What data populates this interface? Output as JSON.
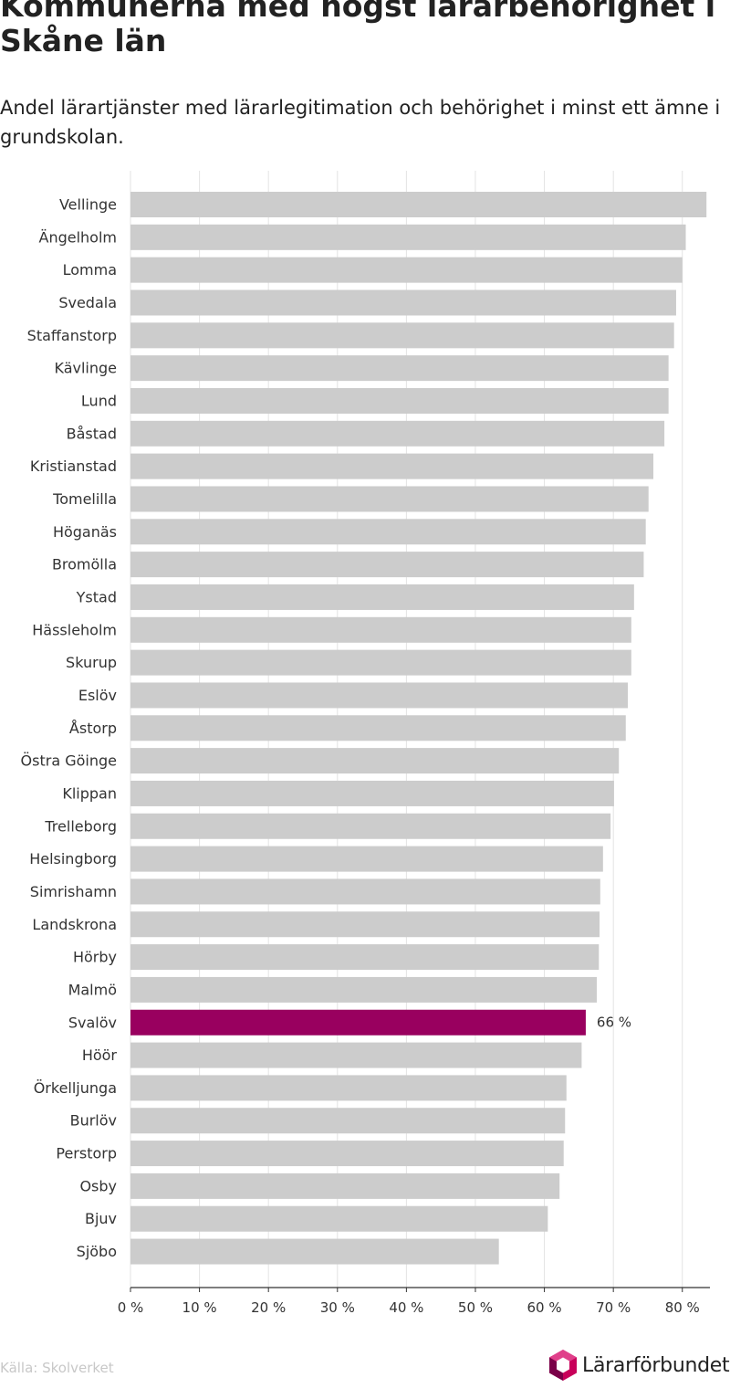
{
  "chart_data": {
    "type": "bar",
    "orientation": "horizontal",
    "title": "Kommunerna med högst lärarbehörighet i Skåne län",
    "subtitle": "Andel lärartjänster med lärarlegitimation och behörighet i minst ett ämne i grundskolan.",
    "categories": [
      "Vellinge",
      "Ängelholm",
      "Lomma",
      "Svedala",
      "Staffanstorp",
      "Kävlinge",
      "Lund",
      "Båstad",
      "Kristianstad",
      "Tomelilla",
      "Höganäs",
      "Bromölla",
      "Ystad",
      "Hässleholm",
      "Skurup",
      "Eslöv",
      "Åstorp",
      "Östra Göinge",
      "Klippan",
      "Trelleborg",
      "Helsingborg",
      "Simrishamn",
      "Landskrona",
      "Hörby",
      "Malmö",
      "Svalöv",
      "Höör",
      "Örkelljunga",
      "Burlöv",
      "Perstorp",
      "Osby",
      "Bjuv",
      "Sjöbo"
    ],
    "values": [
      83.5,
      80.5,
      80,
      79.1,
      78.8,
      78,
      78,
      77.4,
      75.8,
      75.1,
      74.7,
      74.4,
      73,
      72.6,
      72.6,
      72.1,
      71.8,
      70.8,
      70.1,
      69.6,
      68.5,
      68.1,
      68,
      67.9,
      67.6,
      66,
      65.4,
      63.2,
      63,
      62.8,
      62.2,
      60.5,
      53.4
    ],
    "highlight": {
      "category": "Svalöv",
      "label": "66 %",
      "color": "#99005f"
    },
    "bar_color": "#cccccc",
    "xlim": [
      0,
      84
    ],
    "xticks": [
      0,
      10,
      20,
      30,
      40,
      50,
      60,
      70,
      80
    ],
    "xtick_labels": [
      "0 %",
      "10 %",
      "20 %",
      "30 %",
      "40 %",
      "50 %",
      "60 %",
      "70 %",
      "80 %"
    ],
    "grid": true
  },
  "footer": {
    "source": "Källa: Skolverket",
    "brand": "Lärarförbundet"
  }
}
